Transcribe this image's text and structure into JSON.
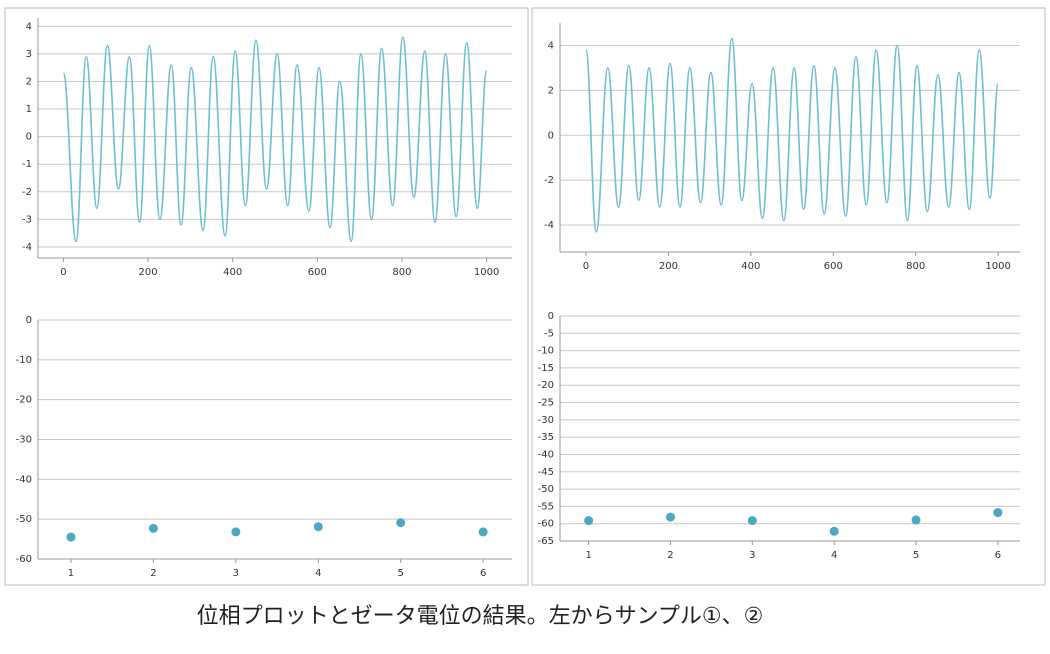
{
  "chart_data": [
    {
      "type": "line",
      "color": "#6cbfd2",
      "grid": true,
      "xlim": [
        -60,
        1060
      ],
      "xticks": [
        0,
        200,
        400,
        600,
        800,
        1000
      ],
      "ylim": [
        -4.4,
        4.3
      ],
      "yticks": [
        -4,
        -3,
        -2,
        -1,
        0,
        1,
        2,
        3,
        4
      ],
      "x": [
        0,
        30,
        54,
        79,
        104,
        130,
        156,
        180,
        203,
        228,
        255,
        278,
        302,
        330,
        354,
        382,
        406,
        430,
        455,
        480,
        505,
        530,
        552,
        580,
        604,
        630,
        653,
        680,
        703,
        728,
        752,
        778,
        802,
        828,
        854,
        878,
        903,
        928,
        953,
        978,
        1000
      ],
      "values": [
        2.3,
        -3.8,
        2.9,
        -2.6,
        3.3,
        -1.9,
        2.9,
        -3.1,
        3.3,
        -3.0,
        2.6,
        -3.2,
        2.5,
        -3.4,
        2.9,
        -3.6,
        3.1,
        -2.5,
        3.5,
        -1.9,
        3.0,
        -2.5,
        2.6,
        -2.7,
        2.5,
        -3.3,
        2.0,
        -3.8,
        3.0,
        -3.0,
        3.2,
        -2.5,
        3.6,
        -2.2,
        3.1,
        -3.1,
        3.0,
        -2.9,
        3.4,
        -2.6,
        2.4
      ]
    },
    {
      "type": "scatter",
      "color": "#4ba7c2",
      "grid": true,
      "xlim": [
        0.6,
        6.35
      ],
      "xticks": [
        1,
        2,
        3,
        4,
        5,
        6
      ],
      "ylim": [
        -60,
        0
      ],
      "yticks": [
        0,
        -10,
        -20,
        -30,
        -40,
        -50,
        -60
      ],
      "x": [
        1,
        2,
        3,
        4,
        5,
        6
      ],
      "values": [
        -54.5,
        -52.3,
        -53.2,
        -51.9,
        -50.9,
        -53.2
      ]
    },
    {
      "type": "line",
      "color": "#6cbfd2",
      "grid": true,
      "xlim": [
        -63,
        1053
      ],
      "xticks": [
        0,
        200,
        400,
        600,
        800,
        1000
      ],
      "ylim": [
        -5.2,
        5
      ],
      "yticks": [
        -4,
        -2,
        0,
        2,
        4
      ],
      "x": [
        0,
        25,
        53,
        79,
        104,
        128,
        153,
        179,
        204,
        228,
        252,
        278,
        303,
        328,
        354,
        378,
        403,
        428,
        454,
        480,
        505,
        528,
        553,
        578,
        604,
        630,
        655,
        680,
        704,
        730,
        755,
        780,
        803,
        828,
        854,
        880,
        905,
        930,
        954,
        980,
        1000
      ],
      "values": [
        3.8,
        -4.3,
        3.0,
        -3.2,
        3.1,
        -2.9,
        3.0,
        -3.2,
        3.2,
        -3.2,
        3.0,
        -3.0,
        2.8,
        -3.1,
        4.3,
        -2.9,
        2.3,
        -3.7,
        3.0,
        -3.8,
        3.0,
        -3.3,
        3.1,
        -3.5,
        3.0,
        -3.6,
        3.5,
        -3.1,
        3.8,
        -3.0,
        4.0,
        -3.8,
        3.1,
        -3.4,
        2.7,
        -3.2,
        2.8,
        -3.3,
        3.8,
        -2.8,
        2.3
      ]
    },
    {
      "type": "scatter",
      "color": "#4ba7c2",
      "grid": true,
      "xlim": [
        0.65,
        6.27
      ],
      "xticks": [
        1,
        2,
        3,
        4,
        5,
        6
      ],
      "ylim": [
        -65,
        0
      ],
      "yticks": [
        0,
        -5,
        -10,
        -15,
        -20,
        -25,
        -30,
        -35,
        -40,
        -45,
        -50,
        -55,
        -60,
        -65
      ],
      "x": [
        1,
        2,
        3,
        4,
        5,
        6
      ],
      "values": [
        -59.1,
        -58.1,
        -59.1,
        -62.2,
        -58.9,
        -56.8
      ]
    }
  ],
  "caption": "位相プロットとゼータ電位の結果。左からサンプル①、②"
}
